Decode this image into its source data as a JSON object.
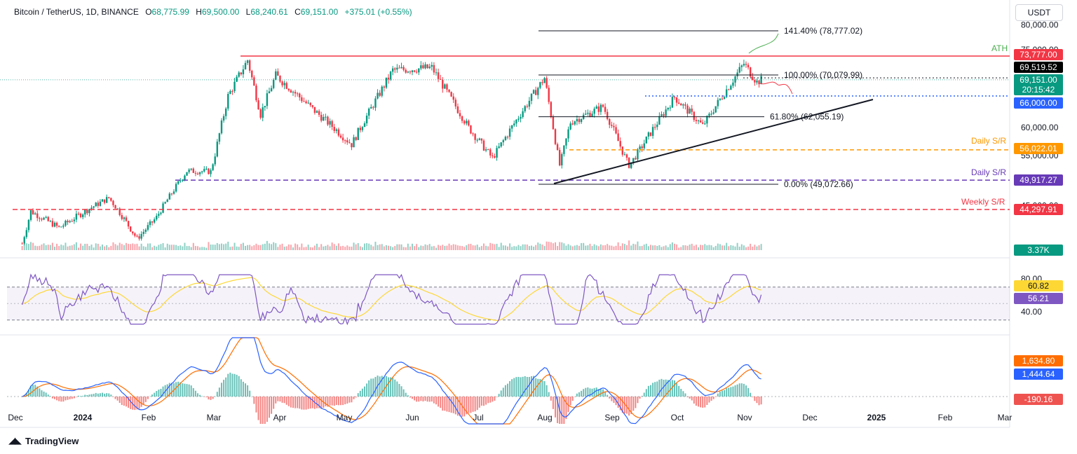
{
  "header": {
    "symbol": "Bitcoin / TetherUS, 1D, BINANCE",
    "open_label": "O",
    "open": "68,775.99",
    "high_label": "H",
    "high": "69,500.00",
    "low_label": "L",
    "low": "68,240.61",
    "close_label": "C",
    "close": "69,151.00",
    "change": "+375.01 (+0.55%)"
  },
  "currency_button": "USDT",
  "brand": "TradingView",
  "colors": {
    "up": "#089981",
    "down": "#f23645",
    "red_line": "#f23645",
    "orange": "#ff9800",
    "purple": "#673ab7",
    "blue": "#2962ff",
    "green_ath": "#4caf50",
    "rsi": "#7e57c2",
    "rsi_ma": "#fdd835"
  },
  "chart_data": {
    "type": "candlestick",
    "x_tick_labels": [
      "Dec",
      "2024",
      "Feb",
      "Mar",
      "Apr",
      "May",
      "Jun",
      "Jul",
      "Aug",
      "Sep",
      "Oct",
      "Nov",
      "Dec",
      "2025",
      "Feb",
      "Mar"
    ],
    "price_axis_labels": [
      "80,000.00",
      "75,000.00",
      "60,000.00",
      "55,000.00",
      "45,000.00"
    ],
    "ylim": [
      40500,
      80500
    ],
    "key_points": [
      {
        "date": "2023-12-01",
        "close": 38700
      },
      {
        "date": "2023-12-05",
        "close": 44000
      },
      {
        "date": "2023-12-18",
        "close": 41300
      },
      {
        "date": "2024-01-10",
        "close": 46500
      },
      {
        "date": "2024-01-23",
        "close": 39500
      },
      {
        "date": "2024-02-01",
        "close": 43000
      },
      {
        "date": "2024-02-15",
        "close": 51800
      },
      {
        "date": "2024-02-26",
        "close": 51700
      },
      {
        "date": "2024-03-05",
        "close": 66000
      },
      {
        "date": "2024-03-14",
        "close": 73000
      },
      {
        "date": "2024-03-20",
        "close": 62500
      },
      {
        "date": "2024-03-27",
        "close": 70000
      },
      {
        "date": "2024-04-13",
        "close": 63500
      },
      {
        "date": "2024-05-01",
        "close": 57000
      },
      {
        "date": "2024-05-20",
        "close": 71000
      },
      {
        "date": "2024-06-07",
        "close": 71500
      },
      {
        "date": "2024-06-24",
        "close": 60000
      },
      {
        "date": "2024-07-05",
        "close": 54500
      },
      {
        "date": "2024-07-29",
        "close": 69500
      },
      {
        "date": "2024-08-05",
        "close": 53000
      },
      {
        "date": "2024-08-10",
        "close": 61000
      },
      {
        "date": "2024-08-25",
        "close": 64000
      },
      {
        "date": "2024-09-06",
        "close": 53000
      },
      {
        "date": "2024-09-27",
        "close": 65800
      },
      {
        "date": "2024-10-10",
        "close": 60300
      },
      {
        "date": "2024-10-29",
        "close": 72300
      },
      {
        "date": "2024-11-04",
        "close": 68700
      },
      {
        "date": "2024-11-06",
        "close": 69151
      }
    ],
    "levels": [
      {
        "label": "ATH",
        "price": 73777,
        "tag": "73,777.00",
        "color": "#f23645"
      },
      {
        "label": "",
        "price": 69519.52,
        "tag": "69,519.52",
        "color": "#000000"
      },
      {
        "label": "",
        "price": 69151,
        "tag": "69,151.00",
        "tag2": "20:15:42",
        "color": "#089981"
      },
      {
        "label": "",
        "price": 66000,
        "tag": "66,000.00",
        "color": "#2962ff"
      },
      {
        "label": "Daily S/R",
        "price": 56022.01,
        "tag": "56,022.01",
        "color": "#ff9800"
      },
      {
        "label": "Daily S/R",
        "price": 49917.27,
        "tag": "49,917.27",
        "color": "#673ab7"
      },
      {
        "label": "Weekly S/R",
        "price": 44297.91,
        "tag": "44,297.91",
        "color": "#f23645"
      }
    ],
    "fibonacci": [
      {
        "label": "141.40% (78,777.02)",
        "price": 78777.02
      },
      {
        "label": "100.00% (70,079.99)",
        "price": 70079.99
      },
      {
        "label": "61.80% (62,055.19)",
        "price": 62055.19
      },
      {
        "label": "0.00% (49,072.66)",
        "price": 49072.66
      }
    ],
    "volume": {
      "last_label": "3.37K"
    },
    "rsi": {
      "axis_labels": [
        "80.00",
        "40.00"
      ],
      "value": 56.21,
      "value_label": "56.21",
      "ma": 60.82,
      "ma_label": "60.82",
      "upper": 70,
      "lower": 30
    },
    "macd": {
      "signal_label": "1,634.80",
      "macd_label": "1,444.64",
      "hist_label": "-190.16",
      "signal": 1634.8,
      "macd": 1444.64,
      "hist": -190.16
    }
  }
}
